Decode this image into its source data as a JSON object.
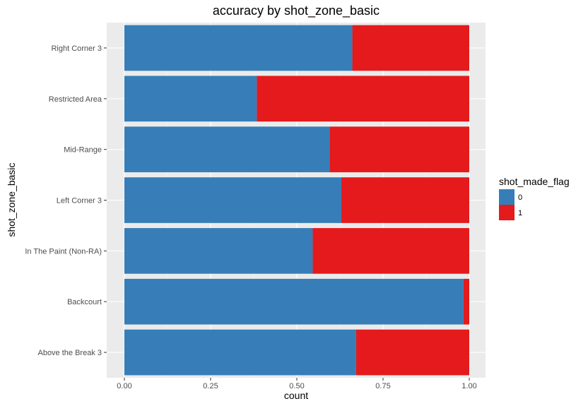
{
  "chart_data": {
    "type": "bar",
    "orientation": "horizontal",
    "stacked": "fill",
    "title": "accuracy by shot_zone_basic",
    "xlabel": "count",
    "ylabel": "shot_zone_basic",
    "xlim": [
      0,
      1
    ],
    "xticks": [
      "0.00",
      "0.25",
      "0.50",
      "0.75",
      "1.00"
    ],
    "categories": [
      "Right Corner 3",
      "Restricted Area",
      "Mid-Range",
      "Left Corner 3",
      "In The Paint (Non-RA)",
      "Backcourt",
      "Above the Break 3"
    ],
    "series": [
      {
        "name": "0",
        "color": "#377EB8",
        "values": [
          0.661,
          0.384,
          0.595,
          0.629,
          0.546,
          0.983,
          0.672
        ]
      },
      {
        "name": "1",
        "color": "#E41A1C",
        "values": [
          0.339,
          0.616,
          0.405,
          0.371,
          0.454,
          0.017,
          0.328
        ]
      }
    ],
    "legend": {
      "title": "shot_made_flag",
      "placement": "right"
    },
    "grid": true,
    "panel_background": "#EBEBEB"
  }
}
